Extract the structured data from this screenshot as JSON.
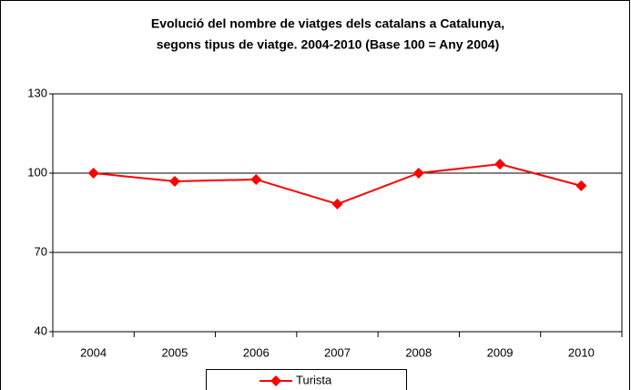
{
  "chart_data": {
    "type": "line",
    "title": [
      "Evolució del nombre de viatges dels catalans a Catalunya,",
      "segons tipus de viatge. 2004-2010 (Base 100 = Any 2004)"
    ],
    "categories": [
      "2004",
      "2005",
      "2006",
      "2007",
      "2008",
      "2009",
      "2010"
    ],
    "series": [
      {
        "name": "Turista",
        "color": "#ff0000",
        "values": [
          100,
          96.9,
          97.6,
          88.3,
          100,
          103.4,
          95.2
        ]
      }
    ],
    "ylim": [
      40,
      130
    ],
    "yticks": [
      40,
      70,
      100,
      130
    ],
    "grid": true,
    "legend": "bottom"
  }
}
